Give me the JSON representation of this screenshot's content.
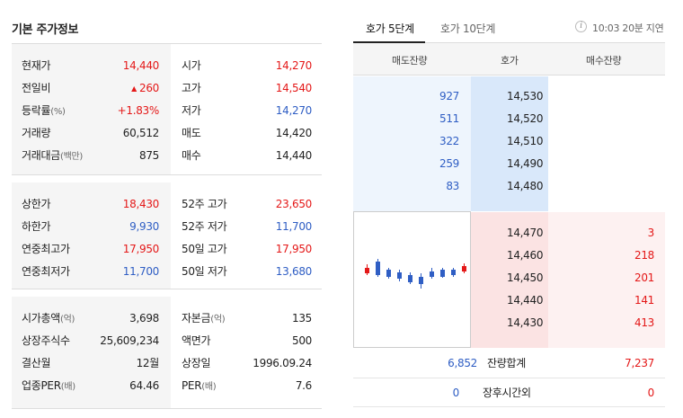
{
  "basic": {
    "title": "기본 주가정보",
    "group1": [
      {
        "l": "현재가",
        "lu": "",
        "v": "14,440",
        "vc": "red",
        "arrow": false,
        "l2": "시가",
        "l2u": "",
        "v2": "14,270",
        "v2c": "red"
      },
      {
        "l": "전일비",
        "lu": "",
        "v": "260",
        "vc": "red",
        "arrow": true,
        "l2": "고가",
        "l2u": "",
        "v2": "14,540",
        "v2c": "red"
      },
      {
        "l": "등락률",
        "lu": "(%)",
        "v": "+1.83%",
        "vc": "red",
        "arrow": false,
        "l2": "저가",
        "l2u": "",
        "v2": "14,270",
        "v2c": "blue"
      },
      {
        "l": "거래량",
        "lu": "",
        "v": "60,512",
        "vc": "",
        "arrow": false,
        "l2": "매도",
        "l2u": "",
        "v2": "14,420",
        "v2c": ""
      },
      {
        "l": "거래대금",
        "lu": "(백만)",
        "v": "875",
        "vc": "",
        "arrow": false,
        "l2": "매수",
        "l2u": "",
        "v2": "14,440",
        "v2c": ""
      }
    ],
    "group2": [
      {
        "l": "상한가",
        "lu": "",
        "v": "18,430",
        "vc": "red",
        "arrow": false,
        "l2": "52주 고가",
        "l2u": "",
        "v2": "23,650",
        "v2c": "red"
      },
      {
        "l": "하한가",
        "lu": "",
        "v": "9,930",
        "vc": "blue",
        "arrow": false,
        "l2": "52주 저가",
        "l2u": "",
        "v2": "11,700",
        "v2c": "blue"
      },
      {
        "l": "연중최고가",
        "lu": "",
        "v": "17,950",
        "vc": "red",
        "arrow": false,
        "l2": "50일 고가",
        "l2u": "",
        "v2": "17,950",
        "v2c": "red"
      },
      {
        "l": "연중최저가",
        "lu": "",
        "v": "11,700",
        "vc": "blue",
        "arrow": false,
        "l2": "50일 저가",
        "l2u": "",
        "v2": "13,680",
        "v2c": "blue"
      }
    ],
    "group3": [
      {
        "l": "시가총액",
        "lu": "(억)",
        "v": "3,698",
        "vc": "",
        "arrow": false,
        "l2": "자본금",
        "l2u": "(억)",
        "v2": "135",
        "v2c": ""
      },
      {
        "l": "상장주식수",
        "lu": "",
        "v": "25,609,234",
        "vc": "",
        "arrow": false,
        "l2": "액면가",
        "l2u": "",
        "v2": "500",
        "v2c": ""
      },
      {
        "l": "결산월",
        "lu": "",
        "v": "12월",
        "vc": "",
        "arrow": false,
        "l2": "상장일",
        "l2u": "",
        "v2": "1996.09.24",
        "v2c": ""
      },
      {
        "l": "업종PER",
        "lu": "(배)",
        "v": "64.46",
        "vc": "",
        "arrow": false,
        "l2": "PER",
        "l2u": "(배)",
        "v2": "7.6",
        "v2c": ""
      }
    ]
  },
  "orderbook": {
    "tabs": [
      "호가 5단계",
      "호가 10단계"
    ],
    "info_icon": "info-icon",
    "delay_text": "10:03 20분 지연",
    "headers": [
      "매도잔량",
      "호가",
      "매수잔량"
    ],
    "asks": [
      {
        "qty": "927",
        "price": "14,530"
      },
      {
        "qty": "511",
        "price": "14,520"
      },
      {
        "qty": "322",
        "price": "14,510"
      },
      {
        "qty": "259",
        "price": "14,490"
      },
      {
        "qty": "83",
        "price": "14,480"
      }
    ],
    "bids": [
      {
        "price": "14,470",
        "qty": "3"
      },
      {
        "price": "14,460",
        "qty": "218"
      },
      {
        "price": "14,450",
        "qty": "201"
      },
      {
        "price": "14,440",
        "qty": "141"
      },
      {
        "price": "14,430",
        "qty": "413"
      }
    ],
    "total_row": {
      "ask": "6,852",
      "label": "잔량합계",
      "bid": "7,237"
    },
    "after_row": {
      "ask": "0",
      "label": "장후시간외",
      "bid": "0"
    },
    "colors": {
      "up": "#e41818",
      "down": "#2f5ec4"
    }
  },
  "mini_chart": {
    "type": "candlestick",
    "candles": [
      {
        "dir": "up"
      },
      {
        "dir": "down"
      },
      {
        "dir": "down"
      },
      {
        "dir": "down"
      },
      {
        "dir": "down"
      },
      {
        "dir": "down"
      },
      {
        "dir": "down"
      },
      {
        "dir": "down"
      },
      {
        "dir": "down"
      },
      {
        "dir": "up"
      }
    ]
  }
}
